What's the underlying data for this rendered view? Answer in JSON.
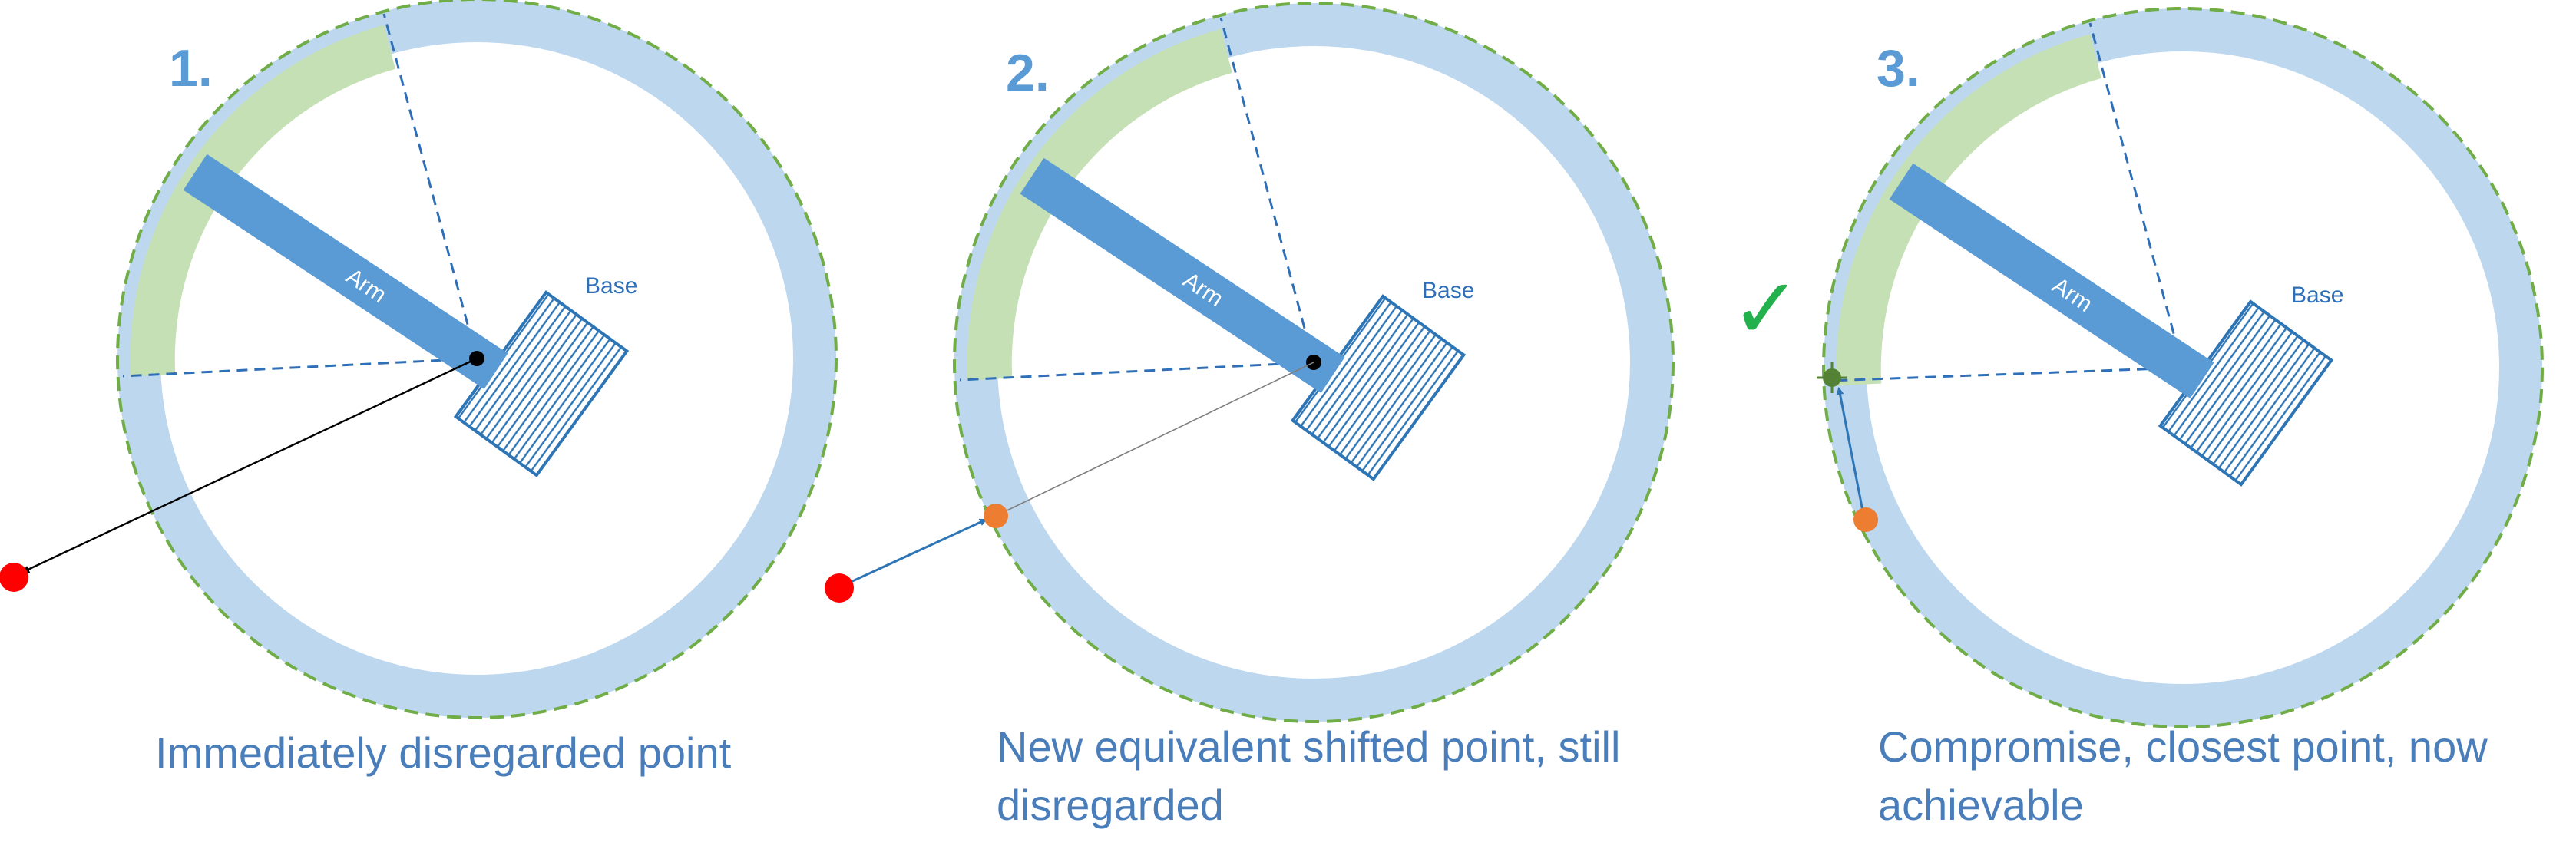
{
  "panels": [
    {
      "number": "1.",
      "arm_label": "Arm",
      "base_label": "Base",
      "caption_lines": [
        "Immediately disregarded point"
      ]
    },
    {
      "number": "2.",
      "arm_label": "Arm",
      "base_label": "Base",
      "caption_lines": [
        "New equivalent shifted point, still",
        "disregarded"
      ]
    },
    {
      "number": "3.",
      "arm_label": "Arm",
      "base_label": "Base",
      "caption_lines": [
        "Compromise, closest point, now",
        "achievable"
      ]
    }
  ],
  "check_mark": "✓",
  "colors": {
    "ring": "#bdd7ee",
    "reachable_arc": "#c5e0b4",
    "dashed_boundary": "#70ad47",
    "arm": "#5b9bd5",
    "base_hatch": "#2e75b6",
    "target_point": "#ff0000",
    "shifted_point": "#ed7d31",
    "compromise_point": "#548235",
    "check": "#22b14c"
  }
}
